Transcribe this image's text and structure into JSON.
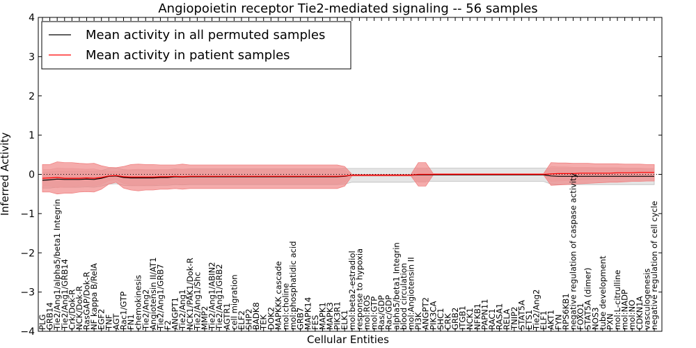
{
  "chart_data": {
    "type": "line",
    "title": "Angiopoietin receptor Tie2-mediated signaling -- 56 samples",
    "xlabel": "Cellular Entities",
    "ylabel": "Inferred Activity",
    "ylim": [
      -4,
      4
    ],
    "yticks": [
      -4,
      -3,
      -2,
      -1,
      0,
      1,
      2,
      3,
      4
    ],
    "ytick_labels": [
      "−4",
      "−3",
      "−2",
      "−1",
      "0",
      "1",
      "2",
      "3",
      "4"
    ],
    "legend_position": "top-left",
    "grid": false,
    "zero_reference_line": "dotted",
    "categories": [
      "PLG",
      "GRB14",
      "Tie2/Ang1/alpha5/beta1 Integrin",
      "Tie2/Ang1/GRB14",
      "Crk/Dok-R",
      "NCK/Dok-R",
      "RasGAP/Dok-R",
      "NF kappa B/RelA",
      "EGF2",
      "TNF",
      "AGT",
      "Rac1/GTP",
      "FN1",
      "chemokinesis",
      "Tie2/Ang2",
      "Angiotensin II/AT1",
      "Tie2/Ang1/GRB7",
      "F2",
      "ANGPT1",
      "Tie2/Ang1",
      "NCK1/PAK1/Dok-R",
      "Tie2/Ang1/Shc",
      "MMP2",
      "Tie2/Ang1/ABIN2",
      "Tie2/Ang1/GRB2",
      "AGTR1",
      "cell migration",
      "ELF2",
      "SHP2",
      "BADK8",
      "TEK",
      "DOK2",
      "MAPKKK cascade",
      "mol:choline",
      "mol:phosphatidic acid",
      "GRB7",
      "MAPK14",
      "FES",
      "MAPK1",
      "MAPK3",
      "PIK3R1",
      "ELK1",
      "mol:beta2-estradiol",
      "response to hypoxia",
      "mol:ROS",
      "mol:GTP",
      "Ras/GDP",
      "Rac/GDP",
      "alpha5/beta1 Integrin",
      "blood circulation",
      "mol:Angiotensin II",
      "PI3K",
      "ANGPT2",
      "PIK3CA",
      "SHC1",
      "CRK",
      "GRB2",
      "ITGB1",
      "NCK1",
      "NFKB1",
      "PAPN11",
      "RAC1",
      "RASA1",
      "RELA",
      "TNIP2",
      "STAT5A",
      "ETS1",
      "Tie2/Ang2",
      "ELF1",
      "AKT1",
      "FYN",
      "RPS6KB1",
      "negative regulation of caspase activity",
      "FOXO1",
      "STAT5A (dimer)",
      "NOS3",
      "tube development",
      "PXN",
      "mol:L-citrulline",
      "mol:NADP",
      "mol:NO",
      "CDKN1A",
      "vasculogenesis",
      "negative regulation of cell cycle"
    ],
    "series": [
      {
        "name": "Mean activity in all permuted samples",
        "color": "#000000",
        "values": [
          -0.15,
          -0.14,
          -0.12,
          -0.13,
          -0.13,
          -0.13,
          -0.12,
          -0.13,
          -0.1,
          -0.05,
          -0.04,
          -0.08,
          -0.09,
          -0.09,
          -0.09,
          -0.09,
          -0.08,
          -0.08,
          -0.06,
          -0.07,
          -0.06,
          -0.06,
          -0.06,
          -0.06,
          -0.06,
          -0.06,
          -0.06,
          -0.06,
          -0.06,
          -0.06,
          -0.06,
          -0.06,
          -0.06,
          -0.06,
          -0.06,
          -0.06,
          -0.06,
          -0.06,
          -0.06,
          -0.06,
          -0.06,
          -0.05,
          -0.02,
          -0.02,
          -0.02,
          -0.02,
          -0.02,
          -0.02,
          -0.02,
          -0.02,
          -0.02,
          -0.01,
          -0.01,
          -0.01,
          -0.01,
          -0.01,
          -0.01,
          -0.01,
          -0.01,
          -0.01,
          -0.01,
          -0.01,
          -0.01,
          -0.01,
          -0.01,
          -0.01,
          -0.01,
          -0.01,
          -0.01,
          -0.04,
          -0.05,
          -0.05,
          -0.05,
          -0.05,
          -0.05,
          -0.05,
          -0.05,
          -0.05,
          -0.05,
          -0.05,
          -0.05,
          -0.05,
          -0.05,
          -0.05
        ]
      },
      {
        "name": "Mean activity in patient samples",
        "color": "#ff0000",
        "values": [
          -0.1,
          -0.09,
          -0.08,
          -0.1,
          -0.1,
          -0.1,
          -0.09,
          -0.1,
          -0.08,
          -0.04,
          -0.03,
          -0.06,
          -0.07,
          -0.07,
          -0.07,
          -0.07,
          -0.06,
          -0.06,
          -0.05,
          -0.06,
          -0.05,
          -0.05,
          -0.05,
          -0.05,
          -0.05,
          -0.05,
          -0.05,
          -0.05,
          -0.05,
          -0.05,
          -0.05,
          -0.05,
          -0.05,
          -0.05,
          -0.05,
          -0.05,
          -0.05,
          -0.05,
          -0.05,
          -0.05,
          -0.05,
          -0.04,
          -0.02,
          -0.02,
          -0.02,
          -0.02,
          -0.02,
          -0.02,
          -0.02,
          -0.02,
          -0.02,
          0.0,
          0.0,
          0.0,
          0.0,
          0.0,
          0.0,
          0.0,
          0.0,
          0.0,
          0.0,
          0.0,
          0.0,
          0.0,
          0.0,
          0.0,
          0.0,
          0.0,
          0.0,
          0.01,
          0.02,
          0.02,
          0.02,
          0.03,
          0.03,
          0.03,
          0.03,
          0.03,
          0.04,
          0.04,
          0.04,
          0.05,
          0.05,
          0.05
        ]
      }
    ],
    "bands": [
      {
        "name": "spread of permuted samples",
        "color": "#bdbdbd",
        "lower": [
          -0.35,
          -0.35,
          -0.33,
          -0.33,
          -0.33,
          -0.33,
          -0.32,
          -0.33,
          -0.3,
          -0.25,
          -0.24,
          -0.28,
          -0.29,
          -0.29,
          -0.29,
          -0.29,
          -0.28,
          -0.28,
          -0.26,
          -0.27,
          -0.26,
          -0.26,
          -0.26,
          -0.26,
          -0.26,
          -0.26,
          -0.26,
          -0.26,
          -0.26,
          -0.26,
          -0.26,
          -0.26,
          -0.26,
          -0.26,
          -0.26,
          -0.26,
          -0.26,
          -0.26,
          -0.26,
          -0.26,
          -0.26,
          -0.25,
          -0.2,
          -0.2,
          -0.2,
          -0.2,
          -0.2,
          -0.2,
          -0.2,
          -0.2,
          -0.2,
          -0.18,
          -0.18,
          -0.18,
          -0.18,
          -0.18,
          -0.18,
          -0.18,
          -0.18,
          -0.18,
          -0.18,
          -0.18,
          -0.18,
          -0.18,
          -0.18,
          -0.18,
          -0.18,
          -0.18,
          -0.18,
          -0.25,
          -0.26,
          -0.26,
          -0.26,
          -0.26,
          -0.26,
          -0.26,
          -0.26,
          -0.26,
          -0.26,
          -0.26,
          -0.26,
          -0.26,
          -0.26,
          -0.26
        ],
        "upper": [
          0.05,
          0.06,
          0.08,
          0.07,
          0.07,
          0.07,
          0.08,
          0.07,
          0.1,
          0.15,
          0.16,
          0.12,
          0.11,
          0.11,
          0.11,
          0.11,
          0.12,
          0.12,
          0.14,
          0.13,
          0.14,
          0.14,
          0.14,
          0.14,
          0.14,
          0.14,
          0.14,
          0.14,
          0.14,
          0.14,
          0.14,
          0.14,
          0.14,
          0.14,
          0.14,
          0.14,
          0.14,
          0.14,
          0.14,
          0.14,
          0.14,
          0.15,
          0.15,
          0.15,
          0.15,
          0.15,
          0.15,
          0.15,
          0.15,
          0.15,
          0.15,
          0.16,
          0.16,
          0.16,
          0.16,
          0.16,
          0.16,
          0.16,
          0.16,
          0.16,
          0.16,
          0.16,
          0.16,
          0.16,
          0.16,
          0.16,
          0.16,
          0.16,
          0.16,
          0.15,
          0.15,
          0.15,
          0.15,
          0.15,
          0.15,
          0.15,
          0.15,
          0.15,
          0.15,
          0.15,
          0.15,
          0.15,
          0.15,
          0.15
        ]
      },
      {
        "name": "outer spread of patient samples",
        "color": "#f08080",
        "lower": [
          -0.45,
          -0.45,
          -0.5,
          -0.48,
          -0.48,
          -0.45,
          -0.44,
          -0.45,
          -0.38,
          -0.25,
          -0.2,
          -0.35,
          -0.4,
          -0.42,
          -0.4,
          -0.4,
          -0.38,
          -0.38,
          -0.36,
          -0.38,
          -0.36,
          -0.36,
          -0.36,
          -0.36,
          -0.36,
          -0.36,
          -0.36,
          -0.36,
          -0.36,
          -0.36,
          -0.36,
          -0.36,
          -0.36,
          -0.36,
          -0.36,
          -0.36,
          -0.36,
          -0.36,
          -0.36,
          -0.36,
          -0.36,
          -0.3,
          -0.04,
          -0.04,
          -0.04,
          -0.04,
          -0.04,
          -0.04,
          -0.04,
          -0.04,
          -0.04,
          -0.3,
          -0.3,
          -0.02,
          -0.02,
          -0.02,
          -0.02,
          -0.02,
          -0.02,
          -0.02,
          -0.02,
          -0.02,
          -0.02,
          -0.02,
          -0.02,
          -0.02,
          -0.02,
          -0.02,
          -0.02,
          -0.28,
          -0.27,
          -0.26,
          -0.25,
          -0.24,
          -0.23,
          -0.22,
          -0.21,
          -0.2,
          -0.2,
          -0.19,
          -0.18,
          -0.18,
          -0.17,
          -0.17
        ],
        "upper": [
          0.25,
          0.25,
          0.32,
          0.3,
          0.3,
          0.28,
          0.27,
          0.28,
          0.22,
          0.18,
          0.17,
          0.2,
          0.25,
          0.26,
          0.25,
          0.25,
          0.24,
          0.24,
          0.24,
          0.26,
          0.24,
          0.24,
          0.24,
          0.24,
          0.24,
          0.24,
          0.24,
          0.24,
          0.24,
          0.24,
          0.24,
          0.24,
          0.24,
          0.24,
          0.24,
          0.24,
          0.24,
          0.24,
          0.24,
          0.24,
          0.24,
          0.2,
          0.0,
          0.0,
          0.0,
          0.0,
          0.0,
          0.0,
          0.0,
          0.0,
          0.0,
          0.3,
          0.3,
          0.02,
          0.02,
          0.02,
          0.02,
          0.02,
          0.02,
          0.02,
          0.02,
          0.02,
          0.02,
          0.02,
          0.02,
          0.02,
          0.02,
          0.02,
          0.02,
          0.3,
          0.29,
          0.29,
          0.28,
          0.28,
          0.28,
          0.27,
          0.27,
          0.27,
          0.27,
          0.26,
          0.26,
          0.26,
          0.25,
          0.25
        ]
      },
      {
        "name": "inner spread of patient samples",
        "color": "#ec9a9a",
        "lower": [
          -0.3,
          -0.3,
          -0.34,
          -0.32,
          -0.32,
          -0.3,
          -0.29,
          -0.3,
          -0.25,
          -0.16,
          -0.13,
          -0.23,
          -0.27,
          -0.28,
          -0.27,
          -0.27,
          -0.25,
          -0.25,
          -0.24,
          -0.25,
          -0.24,
          -0.24,
          -0.24,
          -0.24,
          -0.24,
          -0.24,
          -0.24,
          -0.24,
          -0.24,
          -0.24,
          -0.24,
          -0.24,
          -0.24,
          -0.24,
          -0.24,
          -0.24,
          -0.24,
          -0.24,
          -0.24,
          -0.24,
          -0.24,
          -0.2,
          -0.03,
          -0.03,
          -0.03,
          -0.03,
          -0.03,
          -0.03,
          -0.03,
          -0.03,
          -0.03,
          -0.2,
          -0.2,
          -0.01,
          -0.01,
          -0.01,
          -0.01,
          -0.01,
          -0.01,
          -0.01,
          -0.01,
          -0.01,
          -0.01,
          -0.01,
          -0.01,
          -0.01,
          -0.01,
          -0.01,
          -0.01,
          -0.18,
          -0.17,
          -0.16,
          -0.15,
          -0.14,
          -0.13,
          -0.12,
          -0.11,
          -0.1,
          -0.1,
          -0.09,
          -0.08,
          -0.08,
          -0.07,
          -0.07
        ],
        "upper": [
          0.12,
          0.12,
          0.16,
          0.15,
          0.15,
          0.14,
          0.13,
          0.14,
          0.1,
          0.08,
          0.07,
          0.1,
          0.12,
          0.13,
          0.12,
          0.12,
          0.12,
          0.12,
          0.12,
          0.13,
          0.12,
          0.12,
          0.12,
          0.12,
          0.12,
          0.12,
          0.12,
          0.12,
          0.12,
          0.12,
          0.12,
          0.12,
          0.12,
          0.12,
          0.12,
          0.12,
          0.12,
          0.12,
          0.12,
          0.12,
          0.12,
          0.1,
          0.0,
          0.0,
          0.0,
          0.0,
          0.0,
          0.0,
          0.0,
          0.0,
          0.0,
          0.16,
          0.16,
          0.01,
          0.01,
          0.01,
          0.01,
          0.01,
          0.01,
          0.01,
          0.01,
          0.01,
          0.01,
          0.01,
          0.01,
          0.01,
          0.01,
          0.01,
          0.01,
          0.2,
          0.19,
          0.19,
          0.18,
          0.18,
          0.18,
          0.17,
          0.17,
          0.17,
          0.17,
          0.16,
          0.16,
          0.16,
          0.15,
          0.15
        ]
      }
    ]
  }
}
